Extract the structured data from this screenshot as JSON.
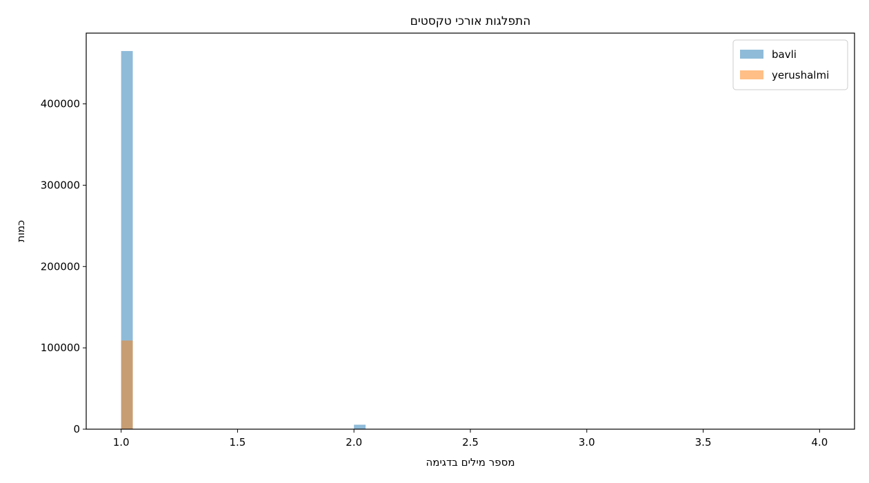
{
  "chart_data": {
    "type": "bar",
    "title": "התפלגות אורכי טקסטים",
    "xlabel": "מספר מילים בדגימה",
    "ylabel": "כמות",
    "xlim": [
      0.85,
      4.15
    ],
    "ylim": [
      0,
      487000
    ],
    "xticks": [
      "1.0",
      "1.5",
      "2.0",
      "2.5",
      "3.0",
      "3.5",
      "4.0"
    ],
    "yticks": [
      "0",
      "100000",
      "200000",
      "300000",
      "400000"
    ],
    "bin_width": 0.05,
    "series": [
      {
        "name": "bavli",
        "color": "#1f77b4",
        "opacity": 0.5,
        "bins": [
          {
            "x": 1.0,
            "count": 465000
          },
          {
            "x": 2.0,
            "count": 5500
          }
        ]
      },
      {
        "name": "yerushalmi",
        "color": "#ff7f0e",
        "opacity": 0.5,
        "bins": [
          {
            "x": 1.0,
            "count": 109000
          }
        ]
      }
    ],
    "legend": {
      "position": "top-right"
    },
    "grid": false
  }
}
